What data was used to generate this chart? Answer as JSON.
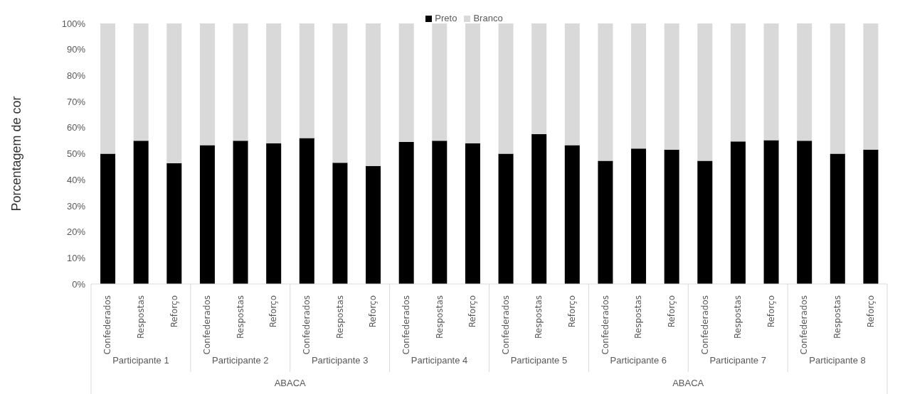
{
  "chart_data": {
    "type": "bar",
    "stacked": true,
    "ylabel": "Porcentagem de cor",
    "legend": "top",
    "categories": [
      "Confederados",
      "Respostas",
      "Reforço",
      "Confederados",
      "Respostas",
      "Reforço",
      "Confederados",
      "Respostas",
      "Reforço",
      "Confederados",
      "Respostas",
      "Reforço",
      "Confederados",
      "Respostas",
      "Reforço",
      "Confederados",
      "Respostas",
      "Reforço",
      "Confederados",
      "Respostas",
      "Reforço",
      "Confederados",
      "Respostas",
      "Reforço"
    ],
    "series": [
      {
        "name": "Preto",
        "color": "#000000",
        "values": [
          50,
          55,
          46.3,
          53.3,
          55,
          54,
          56,
          46.5,
          45.3,
          54.5,
          55,
          54,
          50,
          57.5,
          53.3,
          47.3,
          52,
          51.5,
          47.3,
          54.7,
          55.2,
          55,
          50,
          51.6
        ]
      },
      {
        "name": "Branco",
        "color": "#d9d9d9",
        "values": [
          50,
          45,
          53.7,
          46.7,
          45,
          46,
          44,
          53.5,
          54.7,
          45.5,
          45,
          46,
          50,
          42.5,
          46.7,
          52.7,
          48,
          48.5,
          52.7,
          45.3,
          44.8,
          45,
          50,
          48.4
        ]
      }
    ],
    "ylim": [
      0,
      100
    ],
    "yticks": [
      {
        "value": 0,
        "label": "0%"
      },
      {
        "value": 10,
        "label": "10%"
      },
      {
        "value": 20,
        "label": "20%"
      },
      {
        "value": 30,
        "label": "30%"
      },
      {
        "value": 40,
        "label": "40%"
      },
      {
        "value": 50,
        "label": "50%"
      },
      {
        "value": 60,
        "label": "60%"
      },
      {
        "value": 70,
        "label": "70%"
      },
      {
        "value": 80,
        "label": "80%"
      },
      {
        "value": 90,
        "label": "90%"
      },
      {
        "value": 100,
        "label": "100%"
      }
    ],
    "annotations": [
      "Participante 1",
      "Participante 2",
      "Participante 3",
      "Participante 4",
      "Participante 5",
      "Participante 6",
      "Participante 7",
      "Participante 8",
      "ABACA",
      "ABACA"
    ]
  }
}
